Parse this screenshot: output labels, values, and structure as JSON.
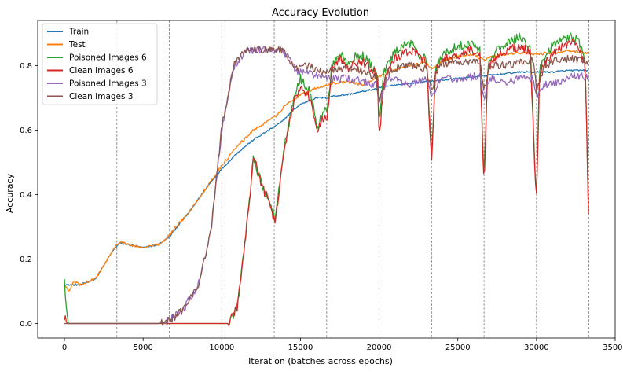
{
  "chart_data": {
    "type": "line",
    "title": "Accuracy Evolution",
    "xlabel": "Iteration (batches across epochs)",
    "ylabel": "Accuracy",
    "xlim": [
      -1700,
      35000
    ],
    "ylim": [
      -0.045,
      0.94
    ],
    "xticks": [
      0,
      5000,
      10000,
      15000,
      20000,
      25000,
      30000,
      35000
    ],
    "xtick_labels": [
      "0",
      "5000",
      "10000",
      "15000",
      "20000",
      "25000",
      "30000",
      "35000"
    ],
    "yticks": [
      0.0,
      0.2,
      0.4,
      0.6,
      0.8
    ],
    "ytick_labels": [
      "0.0",
      "0.2",
      "0.4",
      "0.6",
      "0.8"
    ],
    "epoch_boundaries": [
      3333,
      6667,
      10000,
      13333,
      16667,
      20000,
      23333,
      26667,
      30000,
      33333
    ],
    "grid": false,
    "legend_position": "top-left",
    "series": [
      {
        "name": "Train",
        "color": "#1f77b4",
        "x": [
          0,
          500,
          1000,
          2000,
          3000,
          3500,
          4000,
          5000,
          6000,
          6700,
          7000,
          8000,
          9000,
          10000,
          11000,
          12000,
          13000,
          13800,
          14500,
          15000,
          16000,
          16700,
          17000,
          18000,
          19000,
          20000,
          21000,
          22000,
          23000,
          24000,
          25000,
          26000,
          27000,
          28000,
          29000,
          30000,
          31000,
          32000,
          33000,
          33300
        ],
        "values": [
          0.12,
          0.12,
          0.12,
          0.14,
          0.22,
          0.25,
          0.245,
          0.235,
          0.245,
          0.27,
          0.29,
          0.35,
          0.42,
          0.48,
          0.53,
          0.57,
          0.6,
          0.625,
          0.66,
          0.68,
          0.7,
          0.7,
          0.705,
          0.71,
          0.72,
          0.73,
          0.74,
          0.745,
          0.75,
          0.755,
          0.76,
          0.765,
          0.77,
          0.775,
          0.78,
          0.78,
          0.78,
          0.785,
          0.785,
          0.785
        ]
      },
      {
        "name": "Test",
        "color": "#ff7f0e",
        "x": [
          0,
          300,
          600,
          1000,
          2000,
          3000,
          3500,
          4000,
          5000,
          6000,
          6700,
          7000,
          8000,
          9000,
          10000,
          11000,
          12000,
          13000,
          13500,
          14000,
          15000,
          16000,
          16700,
          17000,
          18000,
          19000,
          20000,
          21000,
          22000,
          23000,
          23333,
          24000,
          25000,
          26000,
          26667,
          27000,
          28000,
          29000,
          30000,
          31000,
          32000,
          33000,
          33300
        ],
        "values": [
          0.12,
          0.1,
          0.13,
          0.12,
          0.14,
          0.22,
          0.255,
          0.245,
          0.235,
          0.245,
          0.275,
          0.295,
          0.35,
          0.42,
          0.49,
          0.55,
          0.6,
          0.63,
          0.645,
          0.675,
          0.71,
          0.73,
          0.74,
          0.745,
          0.75,
          0.74,
          0.765,
          0.785,
          0.8,
          0.81,
          0.79,
          0.815,
          0.83,
          0.835,
          0.815,
          0.825,
          0.835,
          0.84,
          0.835,
          0.84,
          0.845,
          0.84,
          0.84
        ]
      },
      {
        "name": "Poisoned Images 6",
        "color": "#2ca02c",
        "x": [
          0,
          200,
          400,
          10400,
          11000,
          11800,
          12000,
          12300,
          12600,
          13000,
          13400,
          14000,
          14600,
          15000,
          15600,
          16100,
          16400,
          16700,
          17000,
          17500,
          18000,
          18500,
          19000,
          19500,
          19900,
          20000,
          20300,
          21000,
          21600,
          22200,
          22600,
          23000,
          23330,
          23600,
          24200,
          25000,
          25800,
          26400,
          26660,
          26900,
          27500,
          28200,
          29000,
          29600,
          29990,
          30200,
          31000,
          31600,
          32200,
          32700,
          33100,
          33300
        ],
        "values": [
          0.13,
          0.0,
          0.0,
          0.0,
          0.05,
          0.4,
          0.52,
          0.47,
          0.42,
          0.38,
          0.33,
          0.55,
          0.7,
          0.76,
          0.72,
          0.6,
          0.66,
          0.66,
          0.8,
          0.84,
          0.8,
          0.83,
          0.83,
          0.8,
          0.78,
          0.62,
          0.78,
          0.84,
          0.86,
          0.87,
          0.83,
          0.83,
          0.52,
          0.8,
          0.84,
          0.86,
          0.87,
          0.85,
          0.44,
          0.8,
          0.85,
          0.87,
          0.89,
          0.86,
          0.38,
          0.8,
          0.86,
          0.88,
          0.89,
          0.88,
          0.8,
          0.35
        ]
      },
      {
        "name": "Clean Images 6",
        "color": "#d62728",
        "x": [
          0,
          200,
          400,
          10400,
          11000,
          11800,
          12000,
          12300,
          12600,
          13000,
          13400,
          14000,
          14600,
          15000,
          15600,
          16100,
          16400,
          16700,
          17000,
          17500,
          18000,
          18500,
          19000,
          19500,
          19900,
          20000,
          20300,
          21000,
          21600,
          22200,
          22600,
          23000,
          23330,
          23600,
          24200,
          25000,
          25800,
          26400,
          26660,
          26900,
          27500,
          28200,
          29000,
          29600,
          29990,
          30200,
          31000,
          31600,
          32200,
          32700,
          33100,
          33300
        ],
        "values": [
          0.02,
          0.0,
          0.0,
          0.0,
          0.05,
          0.4,
          0.52,
          0.47,
          0.42,
          0.38,
          0.31,
          0.55,
          0.69,
          0.74,
          0.7,
          0.6,
          0.64,
          0.64,
          0.79,
          0.82,
          0.79,
          0.81,
          0.81,
          0.79,
          0.77,
          0.56,
          0.76,
          0.82,
          0.84,
          0.85,
          0.82,
          0.82,
          0.49,
          0.79,
          0.82,
          0.83,
          0.85,
          0.83,
          0.42,
          0.79,
          0.83,
          0.85,
          0.86,
          0.84,
          0.37,
          0.78,
          0.84,
          0.86,
          0.87,
          0.86,
          0.79,
          0.35
        ]
      },
      {
        "name": "Poisoned Images 3",
        "color": "#9467bd",
        "x": [
          0,
          200,
          500,
          2000,
          4000,
          6000,
          6700,
          7500,
          8500,
          9300,
          10000,
          10800,
          11500,
          12000,
          13000,
          13800,
          14300,
          14800,
          15500,
          16000,
          16700,
          17500,
          18000,
          19000,
          19800,
          20000,
          20500,
          21000,
          22000,
          23000,
          23333,
          23800,
          24500,
          25500,
          26400,
          26667,
          27000,
          28000,
          29000,
          29800,
          30000,
          30500,
          31500,
          32500,
          33300
        ],
        "values": [
          0.0,
          0.0,
          0.0,
          0.0,
          0.0,
          0.0,
          0.01,
          0.04,
          0.12,
          0.28,
          0.6,
          0.8,
          0.84,
          0.85,
          0.85,
          0.85,
          0.82,
          0.78,
          0.78,
          0.77,
          0.76,
          0.76,
          0.76,
          0.75,
          0.74,
          0.68,
          0.76,
          0.76,
          0.74,
          0.76,
          0.7,
          0.75,
          0.76,
          0.76,
          0.77,
          0.7,
          0.76,
          0.75,
          0.76,
          0.76,
          0.7,
          0.74,
          0.75,
          0.77,
          0.76
        ]
      },
      {
        "name": "Clean Images 3",
        "color": "#8c564b",
        "x": [
          0,
          200,
          500,
          2000,
          4000,
          6000,
          6700,
          7500,
          8500,
          9300,
          10000,
          10800,
          11500,
          12000,
          13000,
          13800,
          14300,
          14800,
          15500,
          16000,
          16700,
          17500,
          18000,
          19000,
          19800,
          20000,
          20500,
          21000,
          22000,
          23000,
          23333,
          23800,
          24500,
          25500,
          26400,
          26667,
          27000,
          28000,
          29000,
          29800,
          30000,
          30500,
          31500,
          32500,
          33300
        ],
        "values": [
          0.0,
          0.0,
          0.0,
          0.0,
          0.0,
          0.0,
          0.01,
          0.04,
          0.12,
          0.28,
          0.61,
          0.81,
          0.85,
          0.85,
          0.85,
          0.85,
          0.82,
          0.79,
          0.8,
          0.79,
          0.78,
          0.79,
          0.8,
          0.78,
          0.76,
          0.68,
          0.78,
          0.79,
          0.8,
          0.79,
          0.72,
          0.8,
          0.81,
          0.81,
          0.81,
          0.72,
          0.8,
          0.8,
          0.81,
          0.82,
          0.72,
          0.8,
          0.82,
          0.82,
          0.81
        ]
      }
    ]
  }
}
